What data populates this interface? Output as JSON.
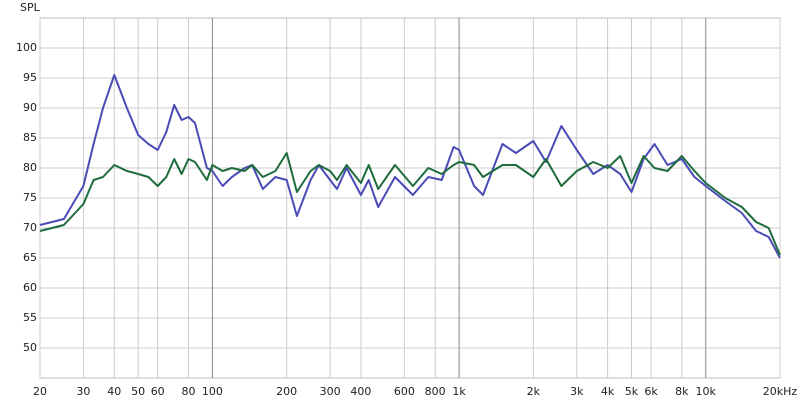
{
  "chart_data": {
    "type": "line",
    "y_label": "SPL",
    "x_scale": "log",
    "grid": true,
    "x": [
      20,
      25,
      30,
      33,
      36,
      40,
      45,
      50,
      55,
      60,
      65,
      70,
      75,
      80,
      85,
      95,
      100,
      110,
      120,
      135,
      145,
      160,
      180,
      200,
      220,
      250,
      270,
      300,
      320,
      350,
      400,
      430,
      470,
      550,
      650,
      750,
      850,
      950,
      1000,
      1150,
      1250,
      1500,
      1700,
      2000,
      2250,
      2600,
      3000,
      3500,
      4000,
      4500,
      5000,
      5600,
      6200,
      7000,
      8000,
      9000,
      10000,
      12000,
      14000,
      16000,
      18000,
      20000
    ],
    "series": [
      {
        "color": "#4b4bb8",
        "values": [
          70.5,
          71.5,
          77,
          84,
          90,
          95.5,
          90,
          85.5,
          84,
          83,
          86,
          90.5,
          88,
          88.5,
          87.5,
          80,
          79.5,
          77,
          78.5,
          80,
          80.5,
          76.5,
          78.5,
          78,
          72,
          78,
          80.5,
          78,
          76.5,
          80,
          75.5,
          78,
          73.5,
          78.5,
          75.5,
          78.5,
          78,
          83.5,
          83,
          77,
          75.5,
          84,
          82.5,
          84.5,
          81,
          87,
          83,
          79,
          80.5,
          79,
          76,
          81.5,
          84,
          80.5,
          81.5,
          78.5,
          77,
          74.5,
          72.5,
          69.5,
          68.5,
          65
        ]
      },
      {
        "color": "#1e6b3c",
        "values": [
          69.5,
          70.5,
          74,
          78,
          78.5,
          80.5,
          79.5,
          79,
          78.5,
          77,
          78.5,
          81.5,
          79,
          81.5,
          81,
          78,
          80.5,
          79.5,
          80,
          79.5,
          80.5,
          78.5,
          79.5,
          82.5,
          76,
          79.5,
          80.5,
          79.5,
          78,
          80.5,
          77.5,
          80.5,
          76.5,
          80.5,
          77,
          80,
          79,
          80.5,
          81,
          80.5,
          78.5,
          80.5,
          80.5,
          78.5,
          81.5,
          77,
          79.5,
          81,
          80,
          82,
          77.5,
          82,
          80,
          79.5,
          82,
          79.5,
          77.5,
          75,
          73.5,
          71,
          70,
          65.5
        ]
      }
    ],
    "xlim": [
      20,
      20000
    ],
    "xticks": [
      20,
      30,
      40,
      50,
      60,
      80,
      100,
      200,
      300,
      400,
      600,
      800,
      {
        "value": 1000,
        "label": "1k"
      },
      {
        "value": 2000,
        "label": "2k"
      },
      {
        "value": 3000,
        "label": "3k"
      },
      {
        "value": 4000,
        "label": "4k"
      },
      {
        "value": 5000,
        "label": "5k"
      },
      {
        "value": 6000,
        "label": "6k"
      },
      {
        "value": 8000,
        "label": "8k"
      },
      {
        "value": 10000,
        "label": "10k"
      },
      {
        "value": 20000,
        "label": "20kHz"
      }
    ],
    "ylim": [
      45,
      105
    ],
    "yticks": [
      50,
      55,
      60,
      65,
      70,
      75,
      80,
      85,
      90,
      95,
      100
    ]
  }
}
